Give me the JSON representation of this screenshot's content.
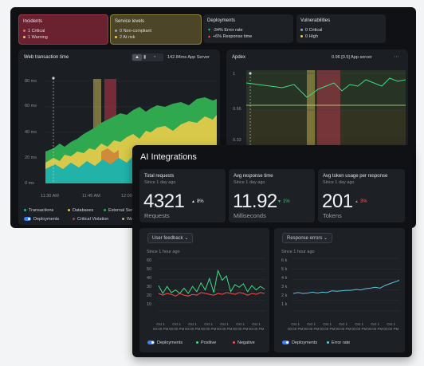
{
  "summary": {
    "incidents": {
      "title": "Incidents",
      "line1": "1 Critical",
      "line2": "1 Warning"
    },
    "service_levels": {
      "title": "Service levels",
      "line1": "0 Non-compliant",
      "line2": "2 At risk"
    },
    "deployments": {
      "title": "Deployments",
      "line1": "-34% Error rate",
      "line2": "+6% Response time"
    },
    "vulnerabilities": {
      "title": "Vulnerabilities",
      "line1": "0 Critical",
      "line2": "0 High"
    }
  },
  "web_chart": {
    "title": "Web transaction time",
    "source": "142.84ms App Server",
    "y_ticks": [
      "80 ms",
      "60 ms",
      "40 ms",
      "20 ms",
      "0 ms"
    ],
    "x_ticks": [
      "11:30 AM",
      "11:45 AM",
      "12:00 AM"
    ],
    "legend": [
      "Transactions",
      "Databases",
      "External Services",
      "Deployments",
      "Critical Violation",
      "Warning"
    ]
  },
  "apdex": {
    "title": "Apdex",
    "source": "0.96 [0.5] App server",
    "y_ticks": [
      "1",
      "0.66",
      "0.33"
    ]
  },
  "ai": {
    "title": "AI Integrations",
    "metrics": [
      {
        "label": "Total requests",
        "since": "Since 1 day ago",
        "value": "4321",
        "change": "8%",
        "unit": "Requests"
      },
      {
        "label": "Avg response time",
        "since": "Since 1 day ago",
        "value": "11.92",
        "change": "1%",
        "unit": "Milliseconds"
      },
      {
        "label": "Avg token usage per response",
        "since": "Since 1 day ago",
        "value": "201",
        "change": "3%",
        "unit": "Tokens"
      }
    ],
    "feedback": {
      "dropdown": "User feedback",
      "since": "Since 1 hour ago",
      "y_ticks": [
        "60",
        "50",
        "40",
        "30",
        "20",
        "10"
      ],
      "x_ticks": [
        "Oct 1\n00:00 PM",
        "Oct 1\n00:00 PM",
        "Oct 1\n00:00 PM",
        "Oct 1\n00:00 PM",
        "Oct 1\n00:00 PM",
        "Oct 1\n00:00 PM",
        "Oct 1\n00:00 PM"
      ],
      "legend": [
        "Deployments",
        "Positive",
        "Negative"
      ]
    },
    "errors": {
      "dropdown": "Response errors",
      "since": "Since 1 hour ago",
      "y_ticks": [
        "6 k",
        "5 k",
        "4 k",
        "3 k",
        "2 k",
        "1 k"
      ],
      "x_ticks": [
        "Oct 1\n00:00 PM",
        "Oct 1\n00:00 PM",
        "Oct 1\n00:00 PM",
        "Oct 1\n00:00 PM",
        "Oct 1\n00:00 PM",
        "Oct 1\n00:00 PM",
        "Oct 1\n00:00 PM"
      ],
      "legend": [
        "Deployments",
        "Error rate"
      ]
    }
  },
  "chart_data": [
    {
      "type": "line",
      "title": "User feedback",
      "ylim": [
        0,
        60
      ],
      "x": [
        1,
        2,
        3,
        4,
        5,
        6,
        7,
        8,
        9,
        10,
        11,
        12,
        13,
        14,
        15,
        16,
        17,
        18,
        19,
        20,
        21,
        22,
        23,
        24,
        25,
        26
      ],
      "series": [
        {
          "name": "Positive",
          "values": [
            29,
            20,
            28,
            21,
            24,
            20,
            26,
            20,
            28,
            22,
            32,
            24,
            37,
            21,
            46,
            35,
            40,
            22,
            30,
            27,
            31,
            22,
            29,
            24,
            28,
            25
          ]
        },
        {
          "name": "Negative",
          "values": [
            20,
            18,
            20,
            19,
            17,
            20,
            18,
            17,
            19,
            18,
            21,
            20,
            19,
            18,
            20,
            19,
            21,
            20,
            19,
            21,
            20,
            18,
            20,
            19,
            21,
            20
          ]
        }
      ]
    },
    {
      "type": "line",
      "title": "Response errors",
      "ylim": [
        0,
        6000
      ],
      "x": [
        1,
        2,
        3,
        4,
        5,
        6,
        7,
        8,
        9,
        10,
        11,
        12,
        13,
        14,
        15,
        16,
        17,
        18,
        19,
        20,
        21,
        22,
        23
      ],
      "series": [
        {
          "name": "Error rate",
          "values": [
            2000,
            2100,
            2000,
            2050,
            2150,
            2050,
            2150,
            2100,
            2300,
            2250,
            2300,
            2350,
            2350,
            2450,
            2400,
            2550,
            2600,
            2700,
            2600,
            2900,
            3100,
            3300,
            3500
          ]
        }
      ]
    }
  ]
}
